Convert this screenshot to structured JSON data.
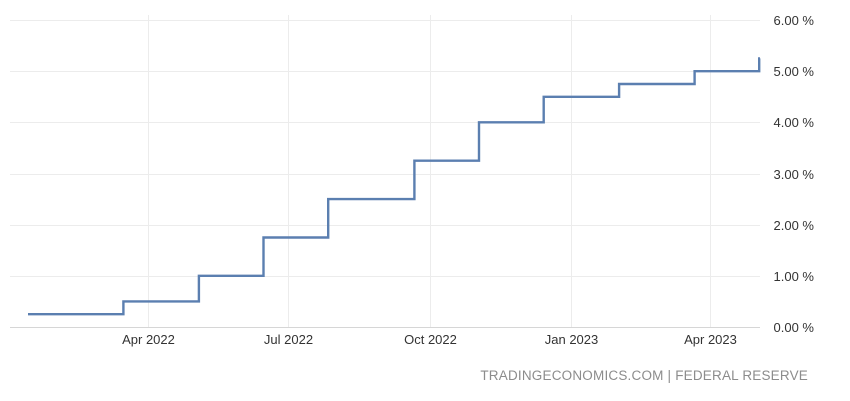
{
  "chart_data": {
    "type": "line",
    "step": true,
    "grid": true,
    "y_axis_side": "right",
    "ylim": [
      0,
      6
    ],
    "yticks": [
      {
        "value": 0,
        "label": "0.00 %"
      },
      {
        "value": 1,
        "label": "1.00 %"
      },
      {
        "value": 2,
        "label": "2.00 %"
      },
      {
        "value": 3,
        "label": "3.00 %"
      },
      {
        "value": 4,
        "label": "4.00 %"
      },
      {
        "value": 5,
        "label": "5.00 %"
      },
      {
        "value": 6,
        "label": "6.00 %"
      }
    ],
    "xlim": [
      "2022-01-13",
      "2023-05-10"
    ],
    "xticks": [
      {
        "value": "2022-04-01",
        "label": "Apr 2022"
      },
      {
        "value": "2022-07-01",
        "label": "Jul 2022"
      },
      {
        "value": "2022-10-01",
        "label": "Oct 2022"
      },
      {
        "value": "2023-01-01",
        "label": "Jan 2023"
      },
      {
        "value": "2023-04-01",
        "label": "Apr 2023"
      }
    ],
    "series": [
      {
        "color": "#5b7fb0",
        "points": [
          {
            "x": "2022-01-13",
            "y": 0.25
          },
          {
            "x": "2022-03-16",
            "y": 0.5
          },
          {
            "x": "2022-05-04",
            "y": 1.0
          },
          {
            "x": "2022-06-15",
            "y": 1.75
          },
          {
            "x": "2022-07-27",
            "y": 2.5
          },
          {
            "x": "2022-09-21",
            "y": 3.25
          },
          {
            "x": "2022-11-02",
            "y": 4.0
          },
          {
            "x": "2022-12-14",
            "y": 4.5
          },
          {
            "x": "2023-02-01",
            "y": 4.75
          },
          {
            "x": "2023-03-22",
            "y": 5.0
          },
          {
            "x": "2023-05-03",
            "y": 5.25
          }
        ]
      }
    ]
  },
  "footer": {
    "source": "TRADINGECONOMICS.COM | FEDERAL RESERVE"
  }
}
